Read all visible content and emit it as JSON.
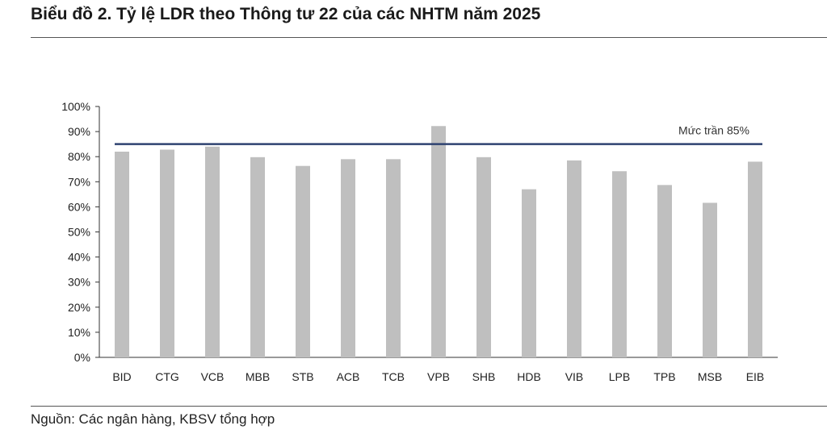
{
  "title": "Biểu đồ 2. Tỷ lệ LDR theo Thông tư 22 của các NHTM năm 2025",
  "source": "Nguồn: Các ngân hàng, KBSV tổng hợp",
  "chart_data": {
    "type": "bar",
    "categories": [
      "BID",
      "CTG",
      "VCB",
      "MBB",
      "STB",
      "ACB",
      "TCB",
      "VPB",
      "SHB",
      "HDB",
      "VIB",
      "LPB",
      "TPB",
      "MSB",
      "EIB"
    ],
    "values": [
      82,
      82.8,
      84,
      79.8,
      76.3,
      79,
      79,
      92.2,
      79.8,
      67,
      78.5,
      74.2,
      68.7,
      61.6,
      78
    ],
    "ylim": [
      0,
      100
    ],
    "yticks": [
      "0%",
      "10%",
      "20%",
      "30%",
      "40%",
      "50%",
      "60%",
      "70%",
      "80%",
      "90%",
      "100%"
    ],
    "xlabel": "",
    "ylabel": "",
    "bar_color": "#bfbfbf",
    "reference_line": {
      "value": 85,
      "label": "Mức trần 85%",
      "color": "#2e4270"
    },
    "grid": false,
    "legend": "none"
  }
}
